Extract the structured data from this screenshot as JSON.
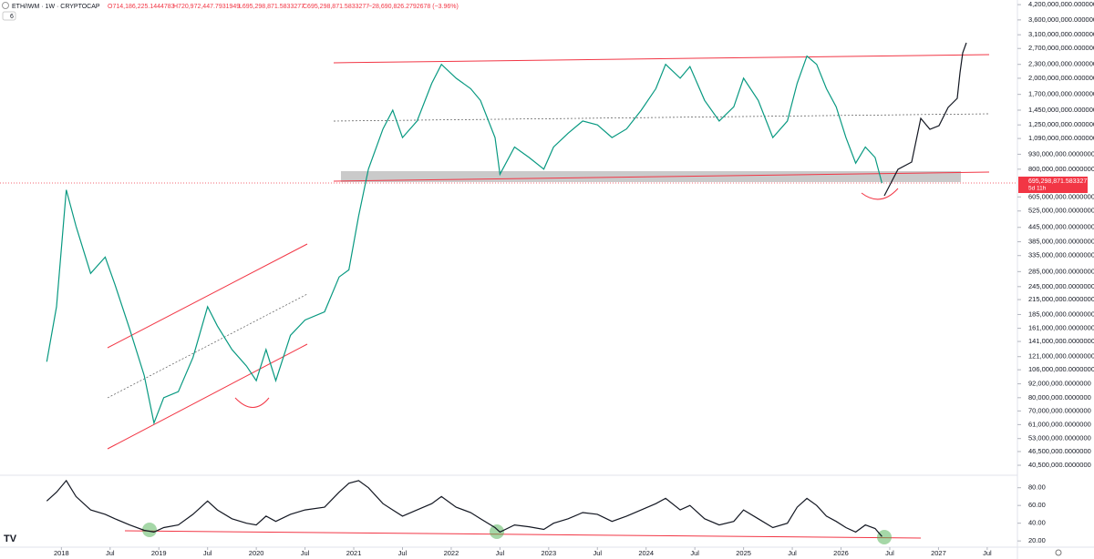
{
  "header": {
    "symbol": "ETH/IWM · 1W · CRYPTOCAP",
    "open": "O714,186,225.1444783",
    "high": "H720,972,447.7931949",
    "low": "L695,298,871.5833277",
    "close": "C695,298,871.5833277",
    "change": "−28,690,826.2792678 (−3.96%)",
    "badge": "6",
    "last_price_label": "695,298,871.5833277",
    "countdown": "5d 11h"
  },
  "chart_data": [
    {
      "type": "line",
      "log_scale": true,
      "color": "#089981",
      "x": [
        2017.85,
        2017.95,
        2018.05,
        2018.15,
        2018.3,
        2018.45,
        2018.55,
        2018.7,
        2018.85,
        2018.95,
        2019.05,
        2019.2,
        2019.35,
        2019.5,
        2019.6,
        2019.75,
        2019.9,
        2020.0,
        2020.1,
        2020.2,
        2020.35,
        2020.5,
        2020.7,
        2020.85,
        2020.95,
        2021.05,
        2021.15,
        2021.3,
        2021.4,
        2021.5,
        2021.65,
        2021.8,
        2021.9,
        2022.05,
        2022.2,
        2022.3,
        2022.45,
        2022.5,
        2022.65,
        2022.8,
        2022.95,
        2023.05,
        2023.2,
        2023.35,
        2023.5,
        2023.65,
        2023.8,
        2023.95,
        2024.1,
        2024.2,
        2024.35,
        2024.45,
        2024.6,
        2024.75,
        2024.9,
        2025.0,
        2025.15,
        2025.3,
        2025.45,
        2025.55,
        2025.65,
        2025.75,
        2025.85,
        2025.95,
        2026.05,
        2026.15,
        2026.25,
        2026.35,
        2026.42
      ],
      "values": [
        115000000,
        200000000,
        650000000,
        450000000,
        280000000,
        330000000,
        250000000,
        160000000,
        100000000,
        62000000,
        80000000,
        85000000,
        120000000,
        200000000,
        165000000,
        130000000,
        110000000,
        95000000,
        130000000,
        95000000,
        150000000,
        175000000,
        190000000,
        270000000,
        290000000,
        500000000,
        800000000,
        1200000000,
        1450000000,
        1100000000,
        1300000000,
        1900000000,
        2300000000,
        2000000000,
        1800000000,
        1600000000,
        1100000000,
        760000000,
        1000000000,
        900000000,
        800000000,
        1000000000,
        1150000000,
        1300000000,
        1250000000,
        1100000000,
        1200000000,
        1450000000,
        1800000000,
        2300000000,
        2000000000,
        2250000000,
        1600000000,
        1300000000,
        1500000000,
        2000000000,
        1600000000,
        1100000000,
        1300000000,
        1900000000,
        2500000000,
        2300000000,
        1800000000,
        1500000000,
        1100000000,
        850000000,
        1000000000,
        900000000,
        695298871.5833277
      ],
      "xlim": [
        2017.37,
        2027.81
      ],
      "xticks": [
        2018,
        {
          "value": 2018.5,
          "label": "Jul"
        },
        2019,
        {
          "value": 2019.5,
          "label": "Jul"
        },
        2020,
        {
          "value": 2020.5,
          "label": "Jul"
        },
        2021,
        {
          "value": 2021.5,
          "label": "Jul"
        },
        2022,
        {
          "value": 2022.5,
          "label": "Jul"
        },
        2023,
        {
          "value": 2023.5,
          "label": "Jul"
        },
        2024,
        {
          "value": 2024.5,
          "label": "Jul"
        },
        2025,
        {
          "value": 2025.5,
          "label": "Jul"
        },
        2026,
        {
          "value": 2026.5,
          "label": "Jul"
        },
        2027,
        {
          "value": 2027.5,
          "label": "Jul"
        }
      ],
      "ylim": [
        37300000,
        4400000000
      ],
      "yticks": [
        {
          "value": 4200000000,
          "label": "4,200,000,000.0000000"
        },
        {
          "value": 3600000000,
          "label": "3,600,000,000.0000000"
        },
        {
          "value": 3100000000,
          "label": "3,100,000,000.0000000"
        },
        {
          "value": 2700000000,
          "label": "2,700,000,000.0000000"
        },
        {
          "value": 2300000000,
          "label": "2,300,000,000.0000000"
        },
        {
          "value": 2000000000,
          "label": "2,000,000,000.0000000"
        },
        {
          "value": 1700000000,
          "label": "1,700,000,000.0000000"
        },
        {
          "value": 1450000000,
          "label": "1,450,000,000.0000000"
        },
        {
          "value": 1250000000,
          "label": "1,250,000,000.0000000"
        },
        {
          "value": 1090000000,
          "label": "1,090,000,000.0000000"
        },
        {
          "value": 930000000,
          "label": "930,000,000.0000000"
        },
        {
          "value": 800000000,
          "label": "800,000,000.0000000"
        },
        {
          "value": 605000000,
          "label": "605,000,000.0000000"
        },
        {
          "value": 525000000,
          "label": "525,000,000.0000000"
        },
        {
          "value": 445000000,
          "label": "445,000,000.0000000"
        },
        {
          "value": 385000000,
          "label": "385,000,000.0000000"
        },
        {
          "value": 335000000,
          "label": "335,000,000.0000000"
        },
        {
          "value": 285000000,
          "label": "285,000,000.0000000"
        },
        {
          "value": 245000000,
          "label": "245,000,000.0000000"
        },
        {
          "value": 215000000,
          "label": "215,000,000.0000000"
        },
        {
          "value": 185000000,
          "label": "185,000,000.0000000"
        },
        {
          "value": 161000000,
          "label": "161,000,000.0000000"
        },
        {
          "value": 141000000,
          "label": "141,000,000.0000000"
        },
        {
          "value": 121000000,
          "label": "121,000,000.0000000"
        },
        {
          "value": 106000000,
          "label": "106,000,000.0000000"
        },
        {
          "value": 92000000,
          "label": "92,000,000.0000000"
        },
        {
          "value": 80000000,
          "label": "80,000,000.0000000"
        },
        {
          "value": 70000000,
          "label": "70,000,000.0000000"
        },
        {
          "value": 61000000,
          "label": "61,000,000.0000000"
        },
        {
          "value": 53000000,
          "label": "53,000,000.0000000"
        },
        {
          "value": 46500000,
          "label": "46,500,000.0000000"
        },
        {
          "value": 40500000,
          "label": "40,500,000.0000000"
        }
      ]
    },
    {
      "type": "line",
      "color": "#131722",
      "x": [
        2017.85,
        2017.95,
        2018.05,
        2018.15,
        2018.3,
        2018.45,
        2018.55,
        2018.7,
        2018.85,
        2018.95,
        2019.05,
        2019.2,
        2019.35,
        2019.5,
        2019.6,
        2019.75,
        2019.9,
        2020.0,
        2020.1,
        2020.2,
        2020.35,
        2020.5,
        2020.7,
        2020.85,
        2020.95,
        2021.05,
        2021.15,
        2021.3,
        2021.4,
        2021.5,
        2021.65,
        2021.8,
        2021.9,
        2022.05,
        2022.2,
        2022.3,
        2022.45,
        2022.5,
        2022.65,
        2022.8,
        2022.95,
        2023.05,
        2023.2,
        2023.35,
        2023.5,
        2023.65,
        2023.8,
        2023.95,
        2024.1,
        2024.2,
        2024.35,
        2024.45,
        2024.6,
        2024.75,
        2024.9,
        2025.0,
        2025.15,
        2025.3,
        2025.45,
        2025.55,
        2025.65,
        2025.75,
        2025.85,
        2025.95,
        2026.05,
        2026.15,
        2026.25,
        2026.35,
        2026.42
      ],
      "values": [
        65,
        75,
        88,
        70,
        55,
        50,
        45,
        38,
        32,
        30,
        35,
        38,
        50,
        65,
        55,
        45,
        40,
        38,
        48,
        42,
        50,
        55,
        58,
        75,
        85,
        88,
        80,
        62,
        55,
        48,
        55,
        62,
        70,
        58,
        52,
        45,
        35,
        30,
        38,
        36,
        33,
        40,
        45,
        52,
        50,
        42,
        48,
        55,
        62,
        68,
        55,
        60,
        45,
        38,
        42,
        55,
        45,
        35,
        40,
        58,
        68,
        60,
        48,
        42,
        35,
        30,
        38,
        34,
        25
      ],
      "xlim": [
        2017.37,
        2027.81
      ],
      "ylim": [
        14,
        92
      ],
      "yticks": [
        {
          "value": 80,
          "label": "80.00"
        },
        {
          "value": 60,
          "label": "60.00"
        },
        {
          "value": 40,
          "label": "40.00"
        },
        {
          "value": 20,
          "label": "20.00"
        }
      ]
    }
  ]
}
